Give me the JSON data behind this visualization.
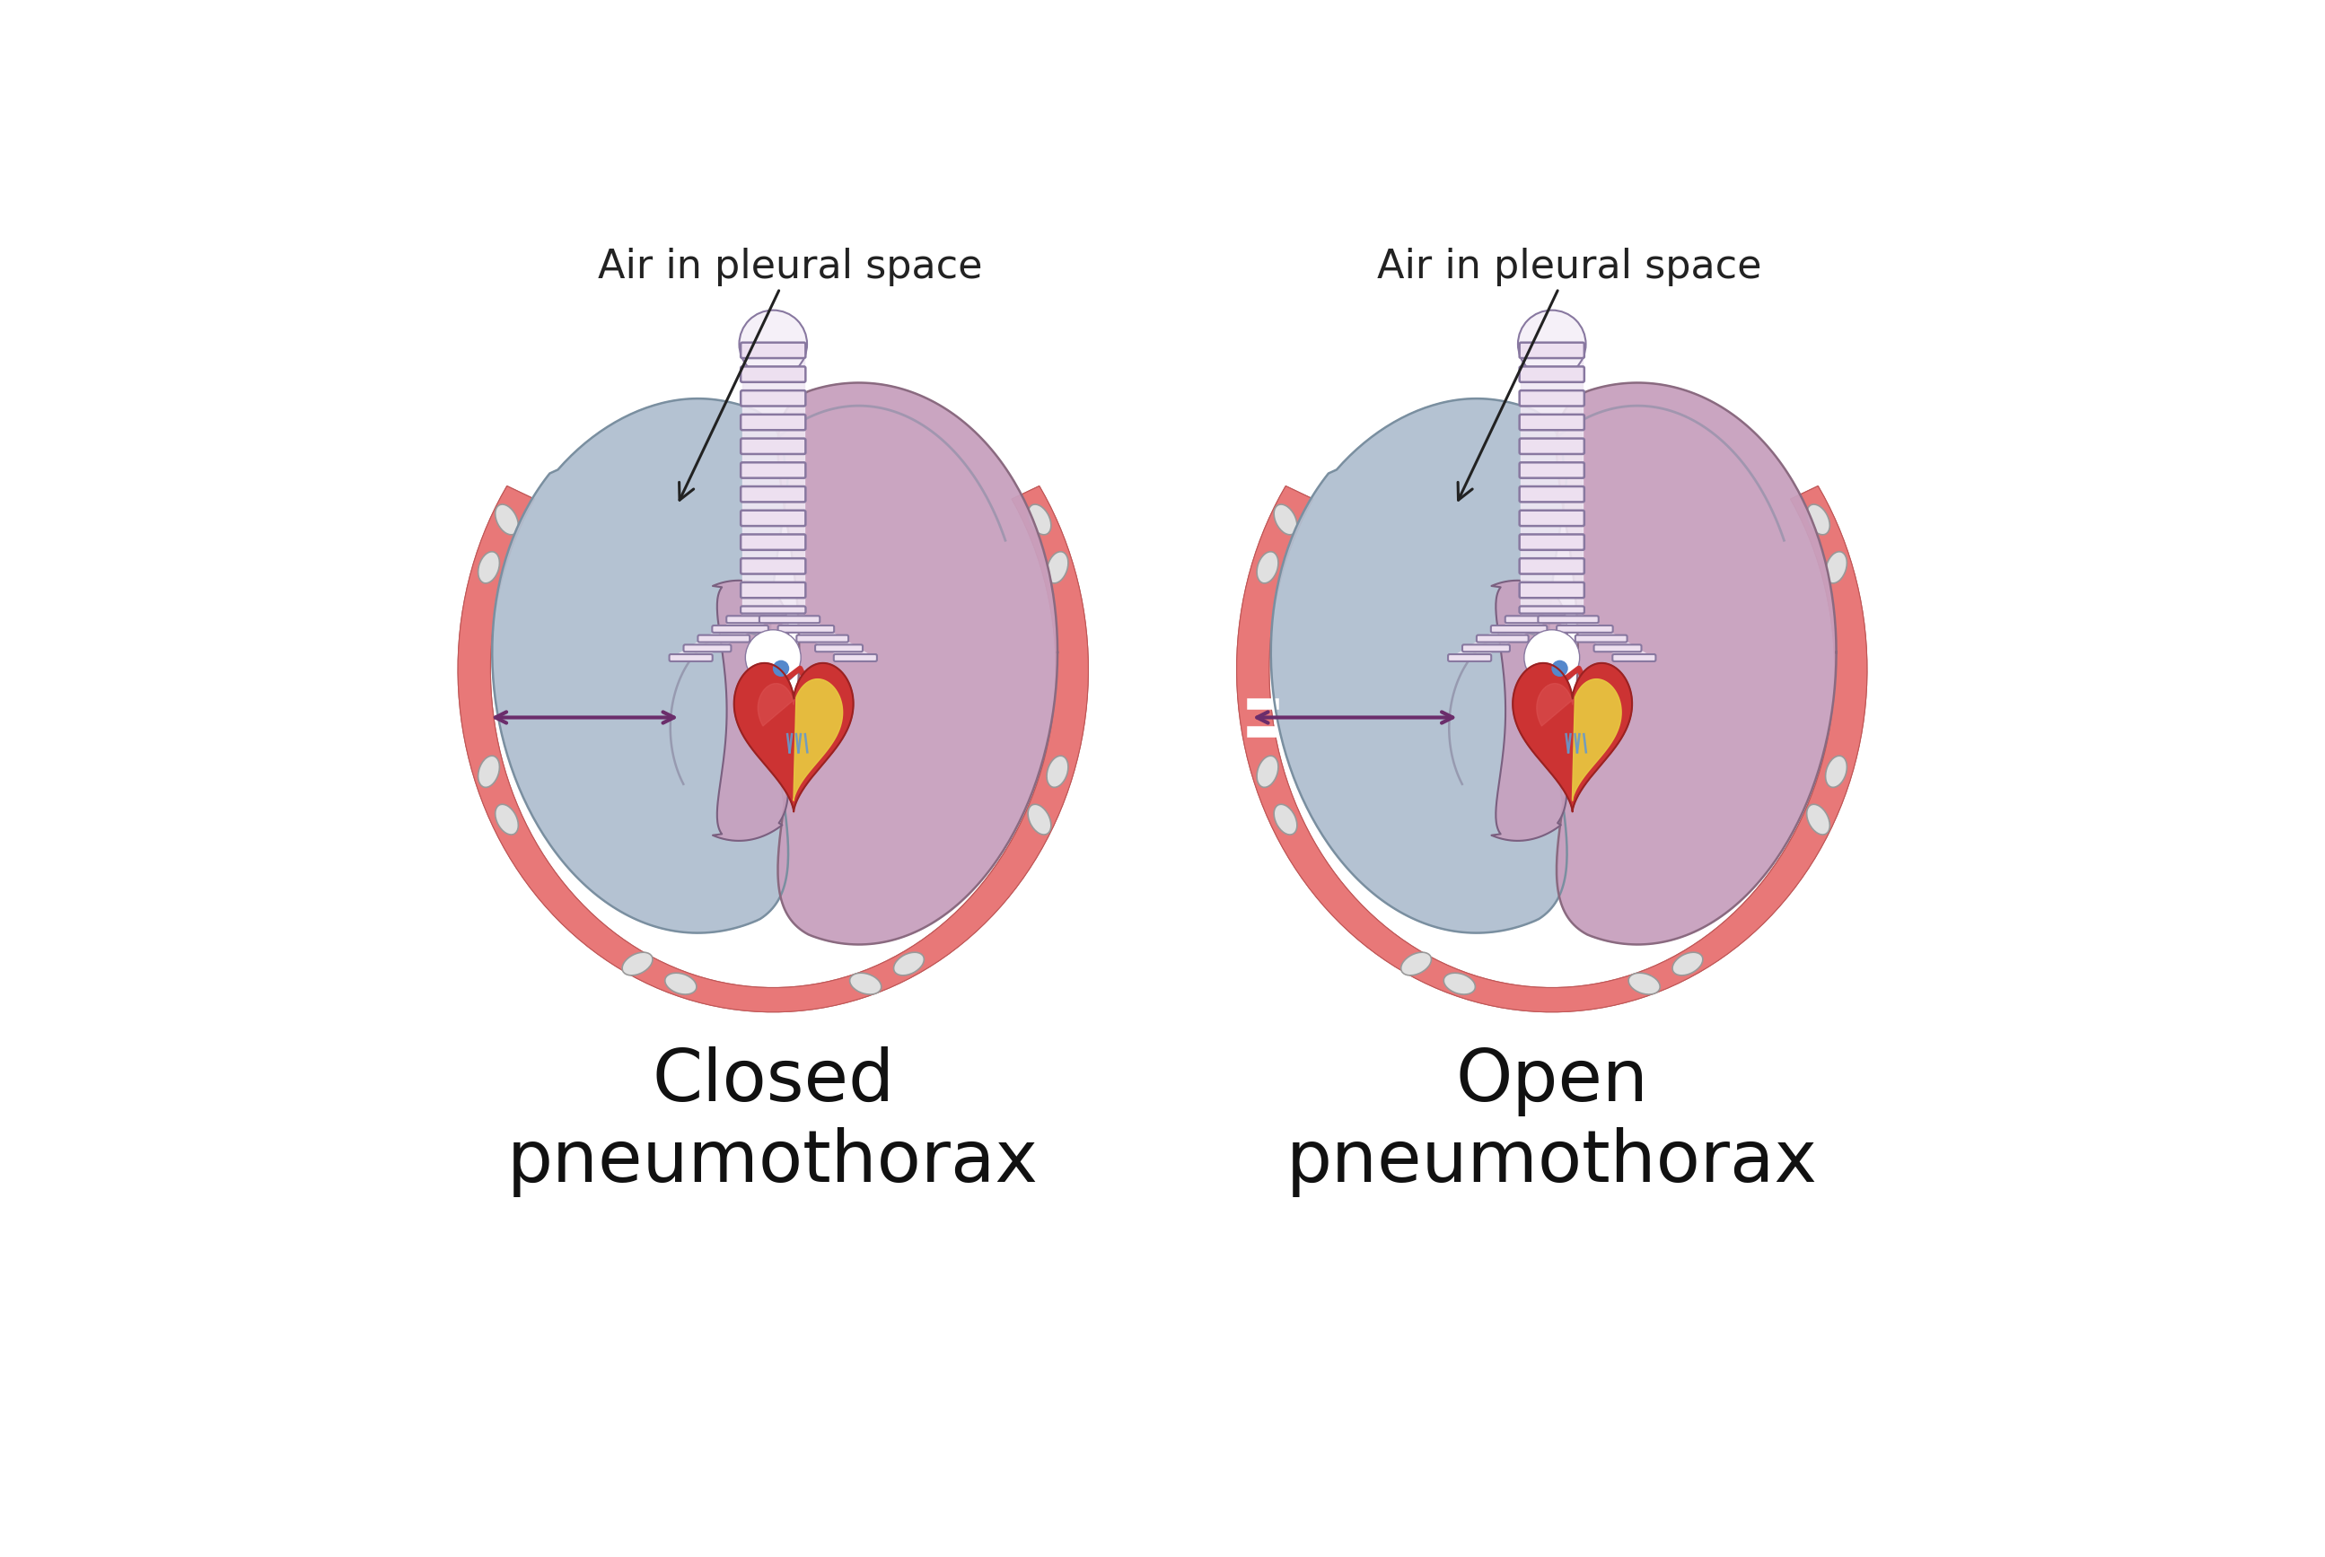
{
  "bg_color": "#ffffff",
  "title_left": "Closed\npneumothorax",
  "title_right": "Open\npneumothorax",
  "title_fontsize": 58,
  "label_text": "Air in pleural space",
  "label_fontsize": 32,
  "lung_collapsed_color": "#b0bfd0",
  "lung_collapsed_edge": "#7a8fa0",
  "lung_normal_color": "#c8a0be",
  "lung_normal_light": "#d4b0ca",
  "lung_normal_edge": "#8a6a80",
  "inner_lung_collapsed_color": "#c8a0be",
  "inner_lung_collapsed_edge": "#7a6080",
  "rib_color": "#e87878",
  "rib_edge": "#c05858",
  "rib_oval_fill": "#e0e0e0",
  "rib_oval_edge": "#999999",
  "pleura_color": "#8899aa",
  "trachea_fill": "#f0e8f4",
  "trachea_ring_fill": "#ede0f0",
  "trachea_ring_edge": "#8878a0",
  "bronchi_fill": "#e0d0e8",
  "bronchi_edge": "#9080a0",
  "heart_fill": "#cc3333",
  "heart_edge": "#992222",
  "aorta_fill": "#cc3333",
  "pulm_fill": "#5588cc",
  "fat_fill": "#e8c840",
  "fat_vein": "#6699cc",
  "arrow_color": "#6b2d6b",
  "annotation_color": "#222222",
  "inner_lung_line": "#9090a8"
}
